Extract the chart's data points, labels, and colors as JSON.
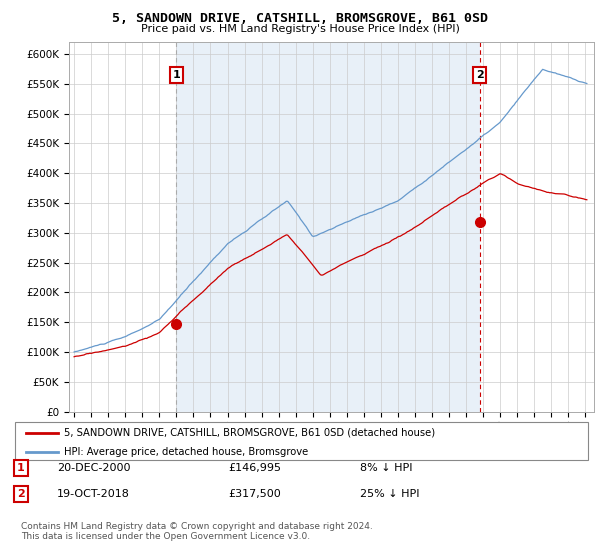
{
  "title": "5, SANDOWN DRIVE, CATSHILL, BROMSGROVE, B61 0SD",
  "subtitle": "Price paid vs. HM Land Registry's House Price Index (HPI)",
  "ylim": [
    0,
    620000
  ],
  "xlim_start": 1994.7,
  "xlim_end": 2025.5,
  "red_line_color": "#cc0000",
  "blue_line_color": "#6699cc",
  "blue_fill_color": "#ddeeff",
  "purchase1_x": 2001.0,
  "purchase1_y": 146995,
  "purchase2_x": 2018.8,
  "purchase2_y": 317500,
  "vline1_x": 2001.0,
  "vline2_x": 2018.8,
  "legend_line1": "5, SANDOWN DRIVE, CATSHILL, BROMSGROVE, B61 0SD (detached house)",
  "legend_line2": "HPI: Average price, detached house, Bromsgrove",
  "footnote": "Contains HM Land Registry data © Crown copyright and database right 2024.\nThis data is licensed under the Open Government Licence v3.0.",
  "background_color": "#ffffff",
  "grid_color": "#cccccc",
  "chart_bg_color": "#e8f0f8"
}
